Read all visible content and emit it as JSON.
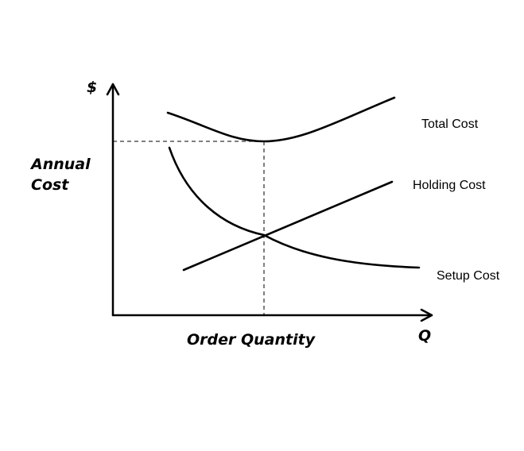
{
  "diagram": {
    "y_axis_symbol": "$",
    "x_axis_symbol": "Q",
    "y_axis_title_lines": [
      "Annual",
      "Cost"
    ],
    "x_axis_title": "Order Quantity",
    "curves": {
      "total": {
        "label": "Total Cost"
      },
      "holding": {
        "label": "Holding Cost"
      },
      "setup": {
        "label": "Setup Cost"
      }
    },
    "guides": {
      "optimum_horizontal": true,
      "optimum_vertical": true
    },
    "line_color": "#000000",
    "background": "#ffffff"
  }
}
